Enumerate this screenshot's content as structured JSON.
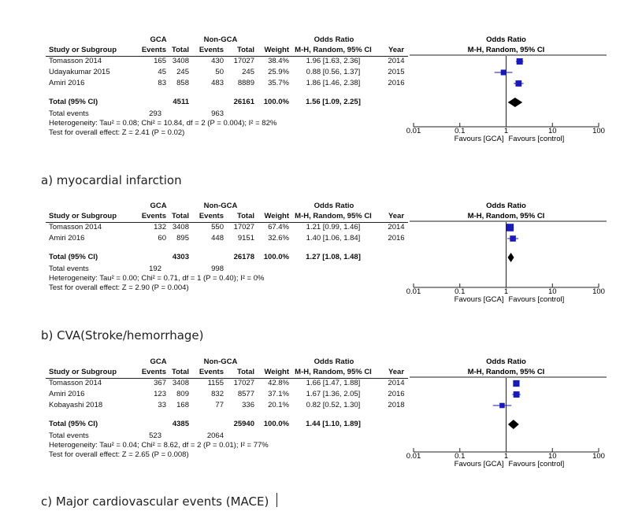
{
  "column_headers": {
    "study": "Study or Subgroup",
    "gca": "GCA",
    "nongca": "Non-GCA",
    "events": "Events",
    "total": "Total",
    "weight": "Weight",
    "or": "Odds Ratio",
    "or_method": "M-H, Random, 95% CI",
    "year": "Year"
  },
  "panels": [
    {
      "caption": "a) myocardial infarction",
      "studies": [
        {
          "name": "Tomasson 2014",
          "ge": "165",
          "gt": "3408",
          "ne": "430",
          "nt": "17027",
          "w": "38.4%",
          "ci": "1.96 [1.63, 2.36]",
          "year": "2014"
        },
        {
          "name": "Udayakumar 2015",
          "ge": "45",
          "gt": "245",
          "ne": "50",
          "nt": "245",
          "w": "25.9%",
          "ci": "0.88 [0.56, 1.37]",
          "year": "2015"
        },
        {
          "name": "Amiri 2016",
          "ge": "83",
          "gt": "858",
          "ne": "483",
          "nt": "8889",
          "w": "35.7%",
          "ci": "1.86 [1.46, 2.38]",
          "year": "2016"
        }
      ],
      "total": {
        "label": "Total (95% CI)",
        "gt": "4511",
        "nt": "26161",
        "w": "100.0%",
        "ci": "1.56 [1.09, 2.25]"
      },
      "events": {
        "label": "Total events",
        "ge": "293",
        "ne": "963"
      },
      "heterogeneity": "Heterogeneity: Tau² = 0.08; Chi² = 10.84, df = 2 (P = 0.004); I² = 82%",
      "overall": "Test for overall effect: Z = 2.41 (P = 0.02)"
    },
    {
      "caption": "b) CVA(Stroke/hemorrhage)",
      "studies": [
        {
          "name": "Tomasson 2014",
          "ge": "132",
          "gt": "3408",
          "ne": "550",
          "nt": "17027",
          "w": "67.4%",
          "ci": "1.21 [0.99, 1.46]",
          "year": "2014"
        },
        {
          "name": "Amiri 2016",
          "ge": "60",
          "gt": "895",
          "ne": "448",
          "nt": "9151",
          "w": "32.6%",
          "ci": "1.40 [1.06, 1.84]",
          "year": "2016"
        }
      ],
      "total": {
        "label": "Total (95% CI)",
        "gt": "4303",
        "nt": "26178",
        "w": "100.0%",
        "ci": "1.27 [1.08, 1.48]"
      },
      "events": {
        "label": "Total events",
        "ge": "192",
        "ne": "998"
      },
      "heterogeneity": "Heterogeneity: Tau² = 0.00; Chi² = 0.71, df = 1 (P = 0.40); I² = 0%",
      "overall": "Test for overall effect: Z = 2.90 (P = 0.004)"
    },
    {
      "caption": "c) Major cardiovascular events (MACE)",
      "studies": [
        {
          "name": "Tomasson 2014",
          "ge": "367",
          "gt": "3408",
          "ne": "1155",
          "nt": "17027",
          "w": "42.8%",
          "ci": "1.66 [1.47, 1.88]",
          "year": "2014"
        },
        {
          "name": "Amiri 2016",
          "ge": "123",
          "gt": "809",
          "ne": "832",
          "nt": "8577",
          "w": "37.1%",
          "ci": "1.67 [1.36, 2.05]",
          "year": "2016"
        },
        {
          "name": "Kobayashi 2018",
          "ge": "33",
          "gt": "168",
          "ne": "77",
          "nt": "336",
          "w": "20.1%",
          "ci": "0.82 [0.52, 1.30]",
          "year": "2018"
        }
      ],
      "total": {
        "label": "Total (95% CI)",
        "gt": "4385",
        "nt": "25940",
        "w": "100.0%",
        "ci": "1.44 [1.10, 1.89]"
      },
      "events": {
        "label": "Total events",
        "ge": "523",
        "ne": "2064"
      },
      "heterogeneity": "Heterogeneity: Tau² = 0.04; Chi² = 8.62, df = 2 (P = 0.01); I² = 77%",
      "overall": "Test for overall effect: Z = 2.65 (P = 0.008)"
    }
  ],
  "chart_data": [
    {
      "type": "forest",
      "title": "Odds Ratio",
      "subtitle": "M-H, Random, 95% CI",
      "axis": {
        "scale": "log",
        "ticks": [
          0.01,
          0.1,
          1,
          10,
          100
        ],
        "tick_labels": [
          "0.01",
          "0.1",
          "1",
          "10",
          "100"
        ],
        "xlim": [
          0.01,
          100
        ]
      },
      "xlabel_left": "Favours [GCA]",
      "xlabel_right": "Favours [control]",
      "studies": [
        {
          "name": "Tomasson 2014",
          "or": 1.96,
          "lo": 1.63,
          "hi": 2.36,
          "weight": 38.4
        },
        {
          "name": "Udayakumar 2015",
          "or": 0.88,
          "lo": 0.56,
          "hi": 1.37,
          "weight": 25.9
        },
        {
          "name": "Amiri 2016",
          "or": 1.86,
          "lo": 1.46,
          "hi": 2.38,
          "weight": 35.7
        }
      ],
      "pooled": {
        "or": 1.56,
        "lo": 1.09,
        "hi": 2.25
      }
    },
    {
      "type": "forest",
      "title": "Odds Ratio",
      "subtitle": "M-H, Random, 95% CI",
      "axis": {
        "scale": "log",
        "ticks": [
          0.01,
          0.1,
          1,
          10,
          100
        ],
        "tick_labels": [
          "0.01",
          "0.1",
          "1",
          "10",
          "100"
        ],
        "xlim": [
          0.01,
          100
        ]
      },
      "xlabel_left": "Favours [GCA]",
      "xlabel_right": "Favours [control]",
      "studies": [
        {
          "name": "Tomasson 2014",
          "or": 1.21,
          "lo": 0.99,
          "hi": 1.46,
          "weight": 67.4
        },
        {
          "name": "Amiri 2016",
          "or": 1.4,
          "lo": 1.06,
          "hi": 1.84,
          "weight": 32.6
        }
      ],
      "pooled": {
        "or": 1.27,
        "lo": 1.08,
        "hi": 1.48
      }
    },
    {
      "type": "forest",
      "title": "Odds Ratio",
      "subtitle": "M-H, Random, 95% CI",
      "axis": {
        "scale": "log",
        "ticks": [
          0.01,
          0.1,
          1,
          10,
          100
        ],
        "tick_labels": [
          "0.01",
          "0.1",
          "1",
          "10",
          "100"
        ],
        "xlim": [
          0.01,
          100
        ]
      },
      "xlabel_left": "Favours [GCA]",
      "xlabel_right": "Favours [control]",
      "studies": [
        {
          "name": "Tomasson 2014",
          "or": 1.66,
          "lo": 1.47,
          "hi": 1.88,
          "weight": 42.8
        },
        {
          "name": "Amiri 2016",
          "or": 1.67,
          "lo": 1.36,
          "hi": 2.05,
          "weight": 37.1
        },
        {
          "name": "Kobayashi 2018",
          "or": 0.82,
          "lo": 0.52,
          "hi": 1.3,
          "weight": 20.1
        }
      ],
      "pooled": {
        "or": 1.44,
        "lo": 1.1,
        "hi": 1.89
      }
    }
  ]
}
